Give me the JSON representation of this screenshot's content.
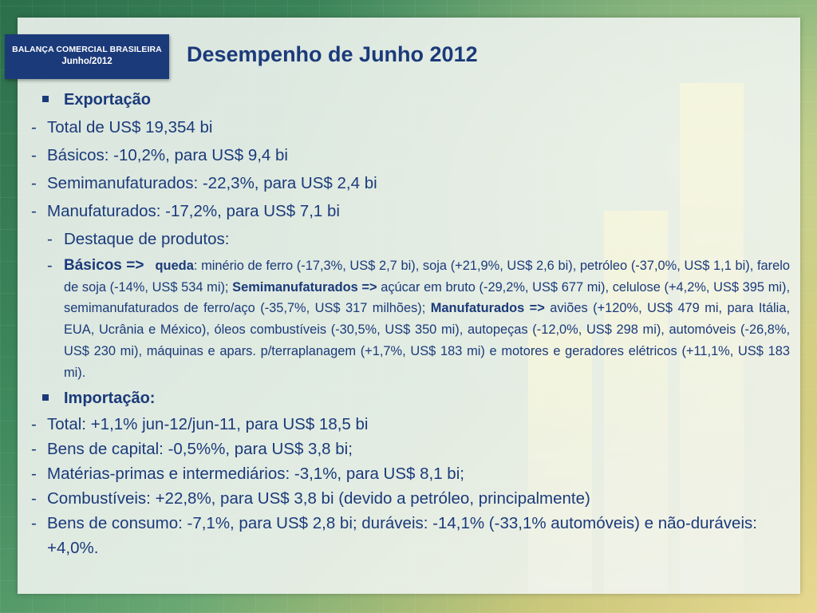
{
  "badge": {
    "line1": "BALANÇA COMERCIAL BRASILEIRA",
    "line2": "Junho/2012"
  },
  "title": "Desempenho de Junho 2012",
  "exportacao": {
    "heading": "Exportação",
    "items": [
      "Total de US$ 19,354 bi",
      "Básicos: -10,2%, para US$ 9,4 bi",
      "Semimanufaturados: -22,3%, para US$ 2,4 bi",
      "Manufaturados: -17,2%, para US$ 7,1 bi"
    ],
    "destaque": "Destaque de produtos:",
    "detail": {
      "basicos_label": "Básicos =>",
      "queda_label": "queda",
      "basicos_text": ": minério de ferro (-17,3%, US$ 2,7 bi), soja (+21,9%, US$ 2,6 bi), petróleo (-37,0%, US$ 1,1 bi), farelo de soja (-14%, US$ 534 mi); ",
      "semi_label": "Semimanufaturados =>",
      "semi_text": " açúcar em bruto (-29,2%, US$ 677 mi), celulose (+4,2%, US$ 395 mi), semimanufaturados de ferro/aço (-35,7%, US$ 317 milhões); ",
      "manuf_label": "Manufaturados =>",
      "manuf_text": " aviões (+120%, US$ 479 mi, para Itália, EUA, Ucrânia e México), óleos combustíveis (-30,5%, US$ 350 mi), autopeças (-12,0%, US$ 298 mi), automóveis (-26,8%, US$ 230 mi), máquinas e apars. p/terraplanagem (+1,7%, US$ 183 mi) e motores e geradores elétricos (+11,1%, US$ 183 mi)."
    }
  },
  "importacao": {
    "heading": "Importação:",
    "items": [
      "Total: +1,1% jun-12/jun-11, para US$ 18,5 bi",
      "Bens de capital: -0,5%%, para US$ 3,8 bi;",
      "Matérias-primas e intermediários: -3,1%, para US$ 8,1 bi;",
      "Combustíveis: +22,8%, para US$ 3,8 bi (devido a petróleo, principalmente)",
      "Bens de consumo: -7,1%, para US$ 2,8 bi; duráveis: -14,1% (-33,1% automóveis) e não-duráveis: +4,0%."
    ]
  },
  "dash": "-"
}
